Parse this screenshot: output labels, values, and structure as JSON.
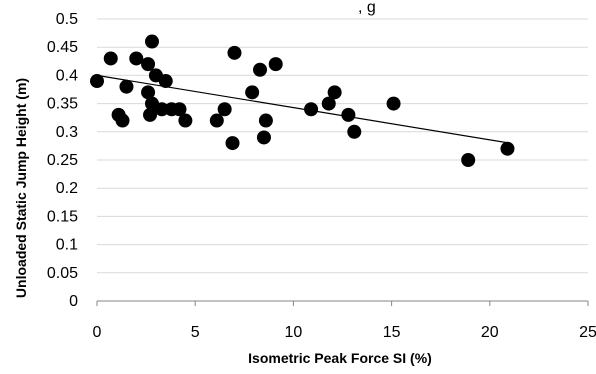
{
  "header_fragment": ", g",
  "chart_data": {
    "type": "scatter",
    "title": "",
    "xlabel": "Isometric Peak Force SI (%)",
    "ylabel": "Unloaded Static Jump Height (m)",
    "xlim": [
      0,
      25
    ],
    "ylim": [
      0,
      0.5
    ],
    "x_ticks": [
      "0",
      "5",
      "10",
      "15",
      "20",
      "25"
    ],
    "y_ticks": [
      "0",
      "0.05",
      "0.1",
      "0.15",
      "0.2",
      "0.25",
      "0.3",
      "0.35",
      "0.4",
      "0.45",
      "0.5"
    ],
    "grid": "horizontal",
    "legend": "none",
    "marker_color": "#000000",
    "trendline": {
      "type": "linear",
      "x": [
        0,
        21
      ],
      "y": [
        0.4,
        0.28
      ]
    },
    "points": [
      {
        "x": 0.0,
        "y": 0.39
      },
      {
        "x": 0.7,
        "y": 0.43
      },
      {
        "x": 1.1,
        "y": 0.33
      },
      {
        "x": 1.3,
        "y": 0.32
      },
      {
        "x": 1.5,
        "y": 0.38
      },
      {
        "x": 2.0,
        "y": 0.43
      },
      {
        "x": 2.6,
        "y": 0.42
      },
      {
        "x": 2.6,
        "y": 0.37
      },
      {
        "x": 2.7,
        "y": 0.33
      },
      {
        "x": 2.8,
        "y": 0.35
      },
      {
        "x": 2.8,
        "y": 0.46
      },
      {
        "x": 3.0,
        "y": 0.4
      },
      {
        "x": 3.3,
        "y": 0.34
      },
      {
        "x": 3.5,
        "y": 0.39
      },
      {
        "x": 3.8,
        "y": 0.34
      },
      {
        "x": 4.2,
        "y": 0.34
      },
      {
        "x": 4.5,
        "y": 0.32
      },
      {
        "x": 6.1,
        "y": 0.32
      },
      {
        "x": 6.5,
        "y": 0.34
      },
      {
        "x": 6.9,
        "y": 0.28
      },
      {
        "x": 7.0,
        "y": 0.44
      },
      {
        "x": 7.9,
        "y": 0.37
      },
      {
        "x": 8.3,
        "y": 0.41
      },
      {
        "x": 8.5,
        "y": 0.29
      },
      {
        "x": 8.6,
        "y": 0.32
      },
      {
        "x": 9.1,
        "y": 0.42
      },
      {
        "x": 10.9,
        "y": 0.34
      },
      {
        "x": 11.8,
        "y": 0.35
      },
      {
        "x": 12.1,
        "y": 0.37
      },
      {
        "x": 12.8,
        "y": 0.33
      },
      {
        "x": 13.1,
        "y": 0.3
      },
      {
        "x": 15.1,
        "y": 0.35
      },
      {
        "x": 18.9,
        "y": 0.25
      },
      {
        "x": 20.9,
        "y": 0.27
      }
    ]
  }
}
